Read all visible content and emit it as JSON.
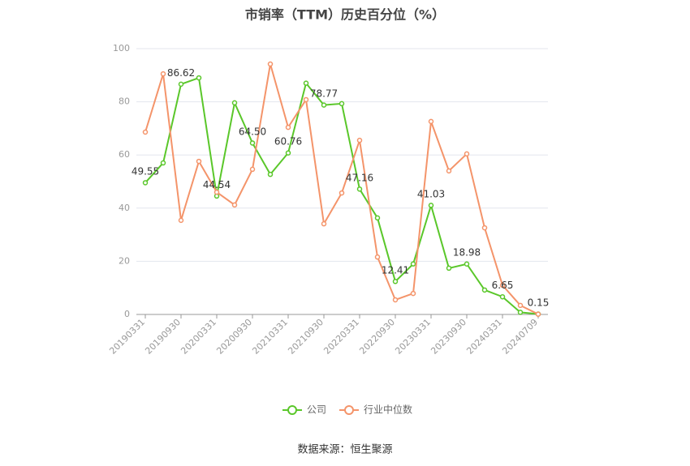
{
  "chart_data": {
    "type": "line",
    "title": "市销率（TTM）历史百分位（%）",
    "categories": [
      "20190331",
      null,
      "20190930",
      null,
      "20200331",
      null,
      "20200930",
      null,
      "20210331",
      null,
      "20210930",
      null,
      "20220331",
      null,
      "20220930",
      null,
      "20230331",
      null,
      "20230930",
      null,
      "20240331",
      null,
      "20240709"
    ],
    "series": [
      {
        "name": "公司",
        "color": "#5ac72a",
        "values": [
          49.55,
          57.0,
          86.62,
          89.0,
          44.54,
          79.6,
          64.5,
          52.7,
          60.76,
          87.0,
          78.77,
          79.3,
          47.16,
          36.3,
          12.41,
          19.0,
          41.03,
          17.4,
          18.98,
          9.2,
          6.65,
          0.8,
          0.15
        ],
        "value_labels": [
          "49.55",
          null,
          "86.62",
          null,
          "44.54",
          null,
          "64.50",
          null,
          "60.76",
          null,
          "78.77",
          null,
          "47.16",
          null,
          "12.41",
          null,
          "41.03",
          null,
          "18.98",
          null,
          "6.65",
          null,
          "0.15"
        ]
      },
      {
        "name": "行业中位数",
        "color": "#f4946a",
        "values": [
          68.6,
          90.5,
          35.4,
          57.6,
          46.0,
          41.2,
          54.6,
          94.2,
          70.4,
          80.8,
          34.1,
          45.7,
          65.5,
          21.6,
          5.5,
          7.9,
          72.6,
          54.0,
          60.4,
          32.6,
          11.0,
          3.4,
          0.1
        ]
      }
    ],
    "ylim": [
      0,
      100
    ],
    "yticks": [
      0,
      20,
      40,
      60,
      80,
      100
    ],
    "grid": true,
    "legend": "bottom",
    "source": "数据来源：恒生聚源"
  }
}
